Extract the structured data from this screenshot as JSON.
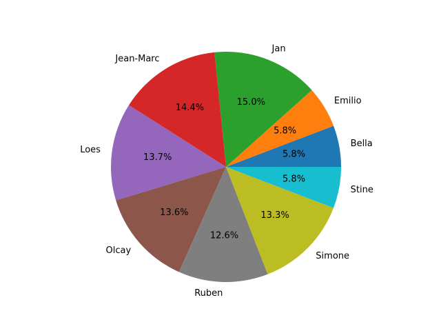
{
  "chart_data": {
    "type": "pie",
    "title": "",
    "start_angle_deg": 0,
    "direction": "counterclockwise",
    "slices": [
      {
        "label": "Bella",
        "value": 5.8,
        "pct_text": "5.8%",
        "color": "#1f77b4"
      },
      {
        "label": "Emilio",
        "value": 5.8,
        "pct_text": "5.8%",
        "color": "#ff7f0e"
      },
      {
        "label": "Jan",
        "value": 15.0,
        "pct_text": "15.0%",
        "color": "#2ca02c"
      },
      {
        "label": "Jean-Marc",
        "value": 14.4,
        "pct_text": "14.4%",
        "color": "#d62728"
      },
      {
        "label": "Loes",
        "value": 13.7,
        "pct_text": "13.7%",
        "color": "#9467bd"
      },
      {
        "label": "Olcay",
        "value": 13.6,
        "pct_text": "13.6%",
        "color": "#8c564b"
      },
      {
        "label": "Ruben",
        "value": 12.6,
        "pct_text": "12.6%",
        "color": "#7f7f7f"
      },
      {
        "label": "Simone",
        "value": 13.3,
        "pct_text": "13.3%",
        "color": "#bcbd22"
      },
      {
        "label": "Stine",
        "value": 5.8,
        "pct_text": "5.8%",
        "color": "#17becf"
      }
    ]
  }
}
